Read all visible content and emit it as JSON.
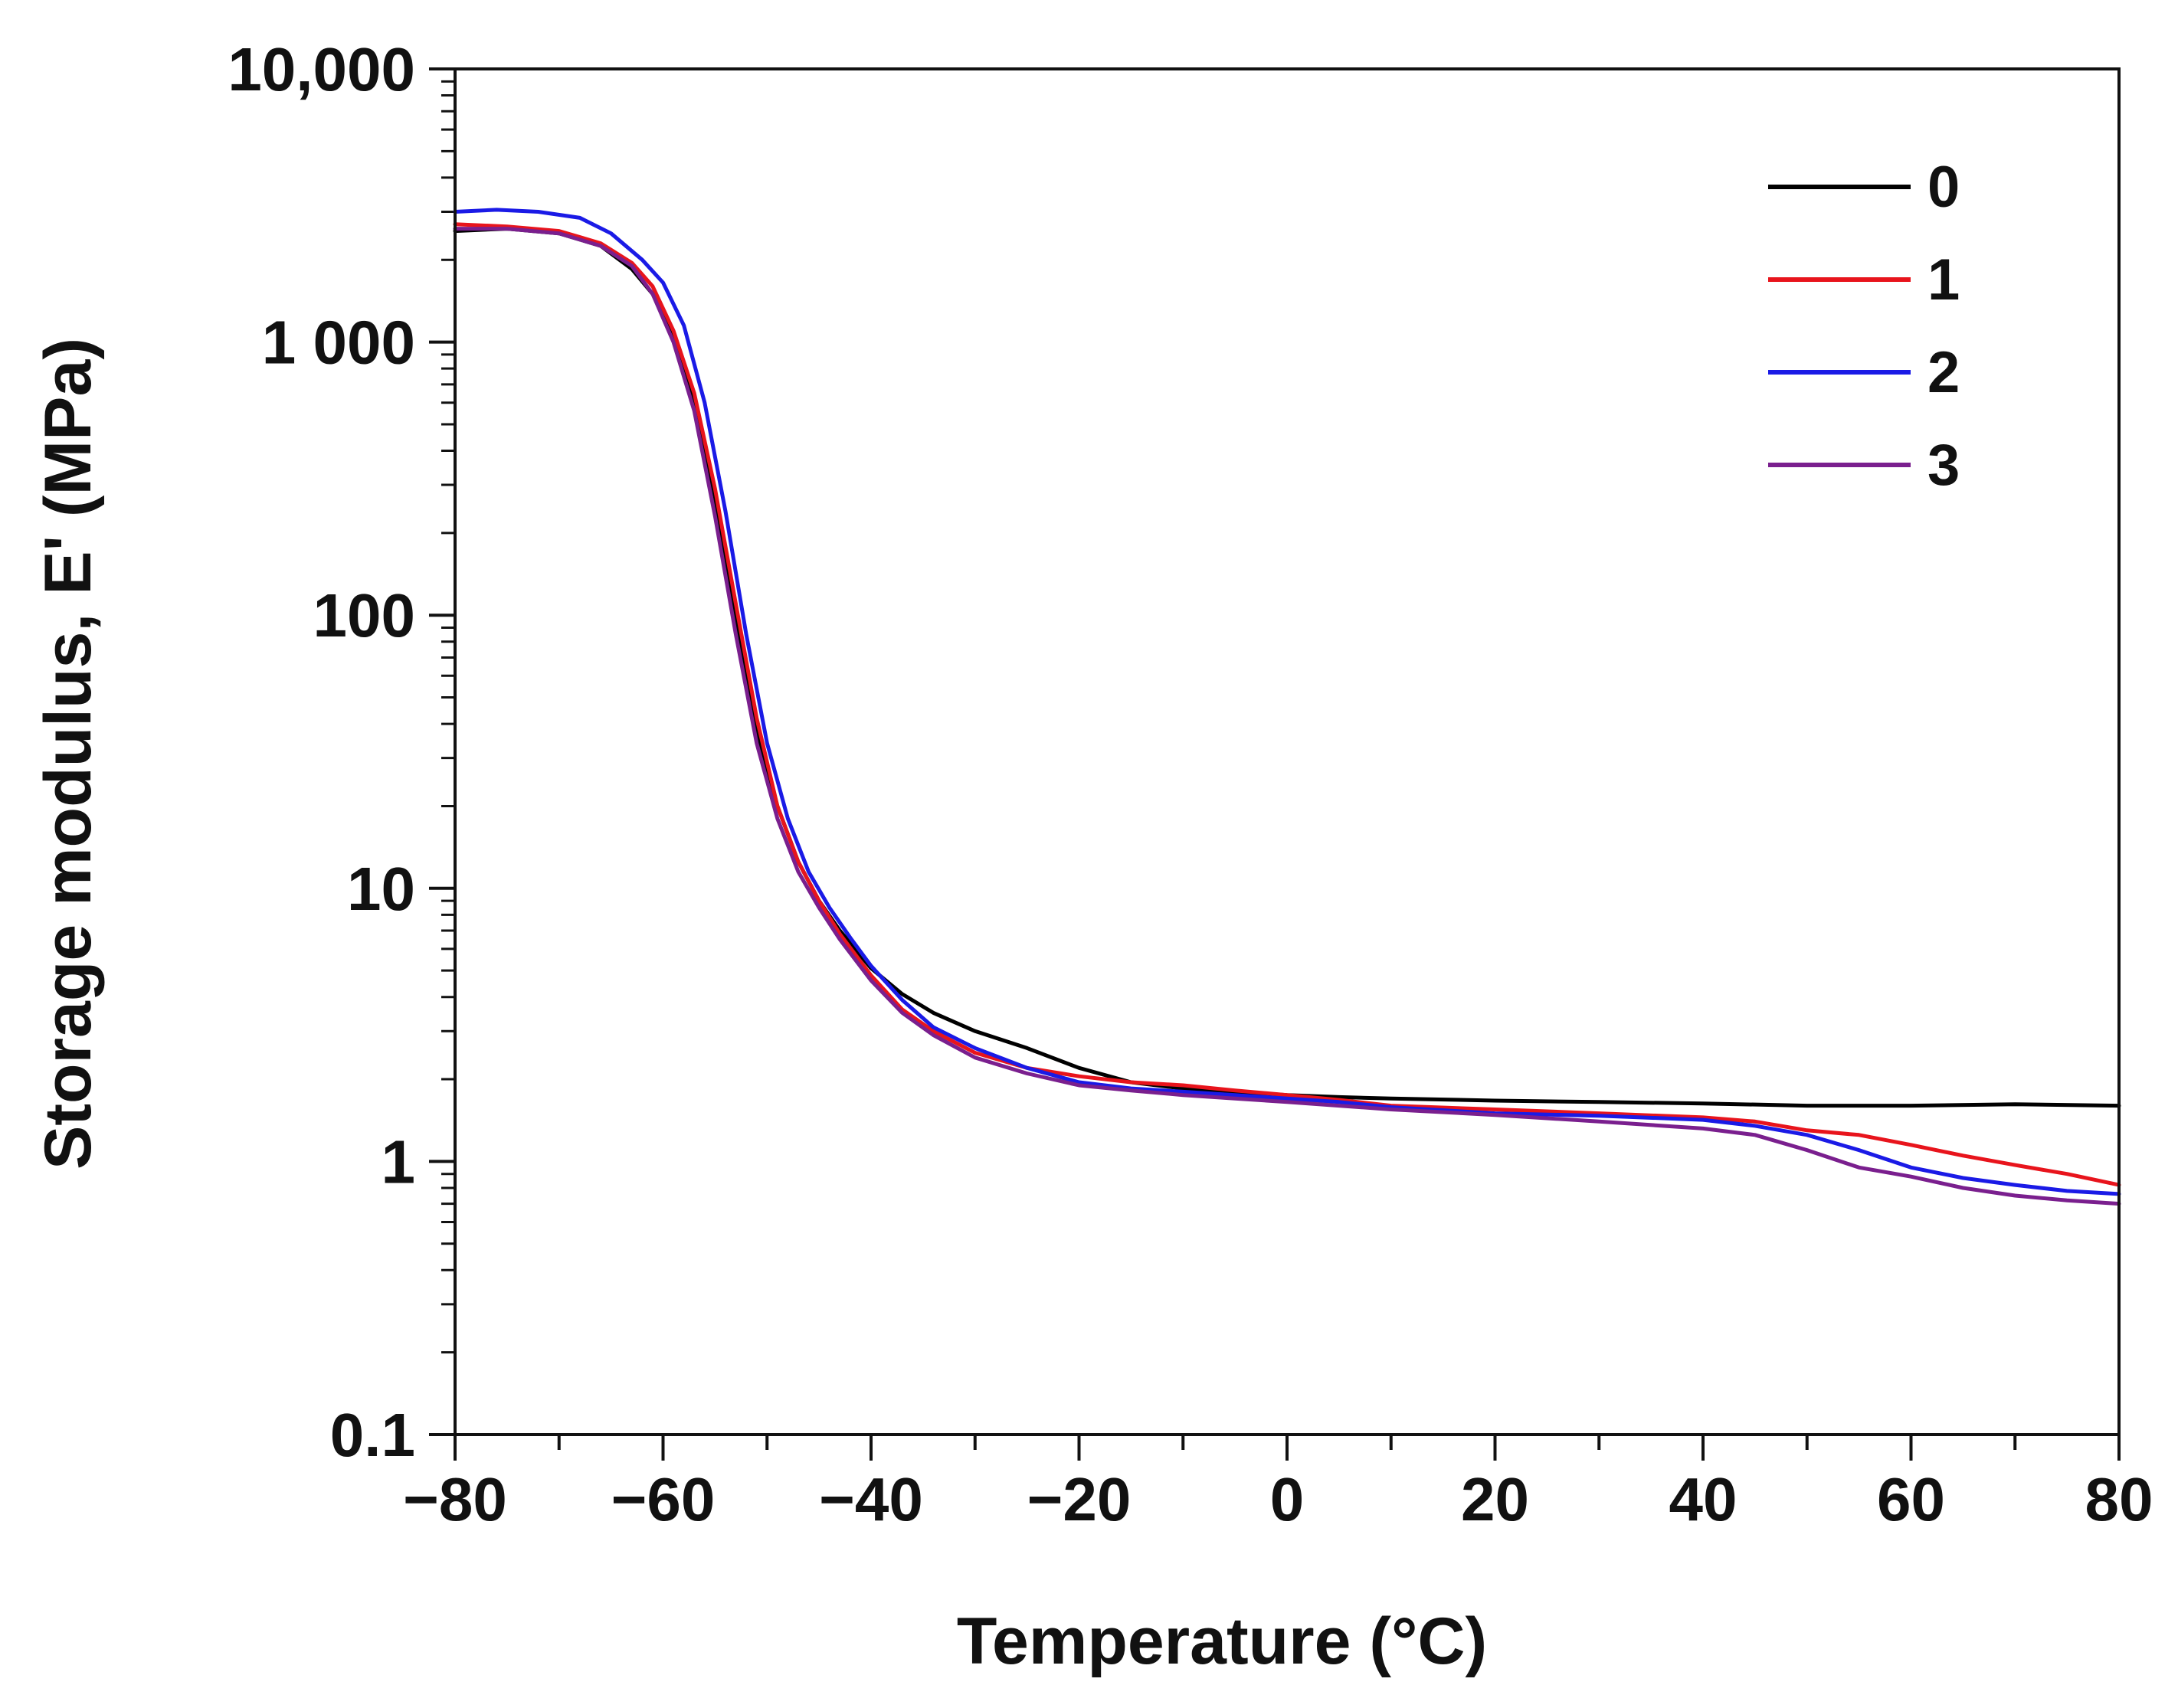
{
  "chart_data": {
    "type": "line",
    "title": "",
    "xlabel": "Temperature (°C)",
    "ylabel": "Storage modulus, E' (MPa)",
    "xlim": [
      -80,
      80
    ],
    "ylim": [
      0.1,
      10000
    ],
    "yscale": "log",
    "grid": false,
    "legend_position": "top-right",
    "x_ticks": [
      {
        "value": -80,
        "label": "−80"
      },
      {
        "value": -60,
        "label": "−60"
      },
      {
        "value": -40,
        "label": "−40"
      },
      {
        "value": -20,
        "label": "−20"
      },
      {
        "value": 0,
        "label": "0"
      },
      {
        "value": 20,
        "label": "20"
      },
      {
        "value": 40,
        "label": "40"
      },
      {
        "value": 60,
        "label": "60"
      },
      {
        "value": 80,
        "label": "80"
      }
    ],
    "y_ticks": [
      {
        "value": 0.1,
        "label": "0.1"
      },
      {
        "value": 1,
        "label": "1"
      },
      {
        "value": 10,
        "label": "10"
      },
      {
        "value": 100,
        "label": "100"
      },
      {
        "value": 1000,
        "label": "1 000"
      },
      {
        "value": 10000,
        "label": "10,000"
      }
    ],
    "series": [
      {
        "name": "0",
        "color": "#000000",
        "x": [
          -80,
          -75,
          -70,
          -66,
          -63,
          -61,
          -59,
          -57,
          -55,
          -53,
          -51,
          -49,
          -47,
          -45,
          -43,
          -40,
          -37,
          -34,
          -30,
          -25,
          -20,
          -15,
          -10,
          -5,
          0,
          5,
          10,
          20,
          30,
          40,
          50,
          60,
          70,
          80
        ],
        "y": [
          2550,
          2600,
          2500,
          2250,
          1850,
          1500,
          1050,
          620,
          270,
          95,
          38,
          20,
          12.5,
          9,
          7,
          5.1,
          4.1,
          3.5,
          3.0,
          2.6,
          2.2,
          1.95,
          1.85,
          1.8,
          1.75,
          1.72,
          1.7,
          1.67,
          1.65,
          1.63,
          1.6,
          1.6,
          1.62,
          1.6
        ]
      },
      {
        "name": "1",
        "color": "#e8141c",
        "x": [
          -80,
          -75,
          -70,
          -66,
          -63,
          -61,
          -59,
          -57,
          -55,
          -53,
          -51,
          -49,
          -47,
          -45,
          -43,
          -40,
          -37,
          -34,
          -30,
          -25,
          -20,
          -15,
          -10,
          -5,
          0,
          5,
          10,
          20,
          30,
          40,
          45,
          50,
          55,
          60,
          65,
          70,
          75,
          80
        ],
        "y": [
          2700,
          2650,
          2550,
          2300,
          1950,
          1600,
          1100,
          650,
          290,
          110,
          42,
          20,
          12.5,
          9,
          6.8,
          4.8,
          3.6,
          3.0,
          2.5,
          2.2,
          2.05,
          1.95,
          1.9,
          1.82,
          1.75,
          1.68,
          1.6,
          1.55,
          1.5,
          1.45,
          1.4,
          1.3,
          1.25,
          1.15,
          1.05,
          0.97,
          0.9,
          0.82
        ]
      },
      {
        "name": "2",
        "color": "#1a1ae6",
        "x": [
          -80,
          -76,
          -72,
          -68,
          -65,
          -62,
          -60,
          -58,
          -56,
          -54,
          -52,
          -50,
          -48,
          -46,
          -44,
          -42,
          -40,
          -37,
          -34,
          -30,
          -25,
          -20,
          -15,
          -10,
          -5,
          0,
          5,
          10,
          20,
          30,
          40,
          45,
          50,
          55,
          60,
          65,
          70,
          75,
          80
        ],
        "y": [
          3000,
          3050,
          3000,
          2850,
          2500,
          2000,
          1650,
          1150,
          600,
          240,
          85,
          34,
          18,
          11.5,
          8.5,
          6.6,
          5.2,
          3.9,
          3.1,
          2.6,
          2.2,
          1.95,
          1.85,
          1.8,
          1.75,
          1.7,
          1.65,
          1.58,
          1.5,
          1.47,
          1.42,
          1.35,
          1.25,
          1.1,
          0.95,
          0.87,
          0.82,
          0.78,
          0.76
        ]
      },
      {
        "name": "3",
        "color": "#7a1f8e",
        "x": [
          -80,
          -75,
          -70,
          -66,
          -63,
          -61,
          -59,
          -57,
          -55,
          -53,
          -51,
          -49,
          -47,
          -45,
          -43,
          -40,
          -37,
          -34,
          -30,
          -25,
          -20,
          -15,
          -10,
          -5,
          0,
          5,
          10,
          20,
          30,
          40,
          45,
          50,
          55,
          60,
          65,
          70,
          75,
          80
        ],
        "y": [
          2600,
          2600,
          2500,
          2250,
          1900,
          1500,
          1000,
          560,
          230,
          85,
          34,
          18,
          11.5,
          8.5,
          6.5,
          4.6,
          3.5,
          2.9,
          2.4,
          2.1,
          1.9,
          1.82,
          1.75,
          1.7,
          1.65,
          1.6,
          1.55,
          1.48,
          1.4,
          1.32,
          1.25,
          1.1,
          0.95,
          0.88,
          0.8,
          0.75,
          0.72,
          0.7
        ]
      }
    ]
  }
}
